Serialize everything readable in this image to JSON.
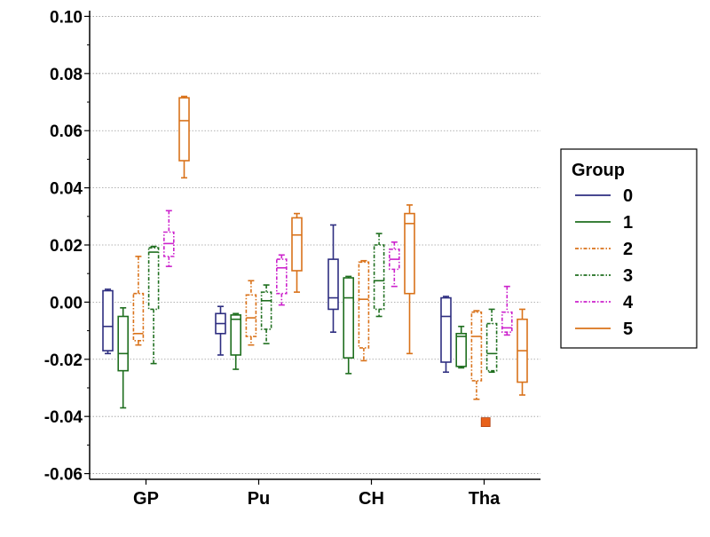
{
  "chart_data": {
    "type": "box",
    "title": "",
    "xlabel": "",
    "ylabel": "",
    "ylim": [
      -0.062,
      0.102
    ],
    "yticks": [
      "0.10",
      "0.08",
      "0.06",
      "0.04",
      "0.02",
      "0.00",
      "-0.02",
      "-0.04",
      "-0.06"
    ],
    "ytick_values": [
      0.1,
      0.08,
      0.06,
      0.04,
      0.02,
      0.0,
      -0.02,
      -0.04,
      -0.06
    ],
    "grid": "horizontal-dotted",
    "categories": [
      "GP",
      "Pu",
      "CH",
      "Tha"
    ],
    "legend": {
      "title": "Group",
      "placement": "right",
      "entries": [
        "0",
        "1",
        "2",
        "3",
        "4",
        "5"
      ]
    },
    "series": [
      {
        "name": "0",
        "color": "#2e2e80",
        "dash": "solid",
        "boxes": [
          {
            "whislo": -0.018,
            "q1": -0.017,
            "med": -0.0085,
            "q3": 0.004,
            "whishi": 0.0045
          },
          {
            "whislo": -0.0185,
            "q1": -0.011,
            "med": -0.0075,
            "q3": -0.004,
            "whishi": -0.0015
          },
          {
            "whislo": -0.0105,
            "q1": -0.0025,
            "med": 0.0015,
            "q3": 0.015,
            "whishi": 0.027
          },
          {
            "whislo": -0.0245,
            "q1": -0.021,
            "med": -0.005,
            "q3": 0.0015,
            "whishi": 0.002
          }
        ]
      },
      {
        "name": "1",
        "color": "#1e6e1e",
        "dash": "solid",
        "boxes": [
          {
            "whislo": -0.037,
            "q1": -0.024,
            "med": -0.018,
            "q3": -0.005,
            "whishi": -0.002
          },
          {
            "whislo": -0.0235,
            "q1": -0.0185,
            "med": -0.006,
            "q3": -0.0045,
            "whishi": -0.004
          },
          {
            "whislo": -0.025,
            "q1": -0.0195,
            "med": 0.0015,
            "q3": 0.0085,
            "whishi": 0.009
          },
          {
            "whislo": -0.023,
            "q1": -0.0225,
            "med": -0.012,
            "q3": -0.011,
            "whishi": -0.0085
          }
        ]
      },
      {
        "name": "2",
        "color": "#d9721a",
        "dash": "dashdot",
        "boxes": [
          {
            "whislo": -0.015,
            "q1": -0.0135,
            "med": -0.011,
            "q3": 0.003,
            "whishi": 0.016
          },
          {
            "whislo": -0.015,
            "q1": -0.012,
            "med": -0.0055,
            "q3": 0.0025,
            "whishi": 0.0075
          },
          {
            "whislo": -0.0205,
            "q1": -0.016,
            "med": 0.001,
            "q3": 0.014,
            "whishi": 0.0145
          },
          {
            "whislo": -0.034,
            "q1": -0.0275,
            "med": -0.012,
            "q3": -0.0035,
            "whishi": -0.003
          }
        ]
      },
      {
        "name": "3",
        "color": "#1e6e1e",
        "dash": "dashdot",
        "boxes": [
          {
            "whislo": -0.0215,
            "q1": -0.0025,
            "med": 0.0175,
            "q3": 0.019,
            "whishi": 0.0195
          },
          {
            "whislo": -0.0145,
            "q1": -0.0095,
            "med": 0.0005,
            "q3": 0.0035,
            "whishi": 0.006
          },
          {
            "whislo": -0.005,
            "q1": -0.0025,
            "med": 0.0075,
            "q3": 0.02,
            "whishi": 0.024
          },
          {
            "whislo": -0.0245,
            "q1": -0.024,
            "med": -0.018,
            "q3": -0.0075,
            "whishi": -0.0025
          }
        ]
      },
      {
        "name": "4",
        "color": "#cc22cc",
        "dash": "dashdot",
        "boxes": [
          {
            "whislo": 0.0125,
            "q1": 0.016,
            "med": 0.0205,
            "q3": 0.0245,
            "whishi": 0.032
          },
          {
            "whislo": -0.001,
            "q1": 0.003,
            "med": 0.012,
            "q3": 0.015,
            "whishi": 0.0165
          },
          {
            "whislo": 0.0055,
            "q1": 0.0115,
            "med": 0.015,
            "q3": 0.0185,
            "whishi": 0.021
          },
          {
            "whislo": -0.0115,
            "q1": -0.0105,
            "med": -0.009,
            "q3": -0.0035,
            "whishi": 0.0055
          }
        ]
      },
      {
        "name": "5",
        "color": "#d9721a",
        "dash": "solid",
        "boxes": [
          {
            "whislo": 0.0435,
            "q1": 0.0495,
            "med": 0.0635,
            "q3": 0.0715,
            "whishi": 0.072
          },
          {
            "whislo": 0.0035,
            "q1": 0.011,
            "med": 0.0235,
            "q3": 0.0295,
            "whishi": 0.031
          },
          {
            "whislo": -0.018,
            "q1": 0.003,
            "med": 0.0275,
            "q3": 0.031,
            "whishi": 0.034
          },
          {
            "whislo": -0.0325,
            "q1": -0.028,
            "med": -0.017,
            "q3": -0.006,
            "whishi": -0.0025
          }
        ]
      }
    ],
    "outliers": [
      {
        "category": "Tha",
        "series_index": 2.6,
        "value": -0.042,
        "color": "#e8611a"
      }
    ]
  }
}
